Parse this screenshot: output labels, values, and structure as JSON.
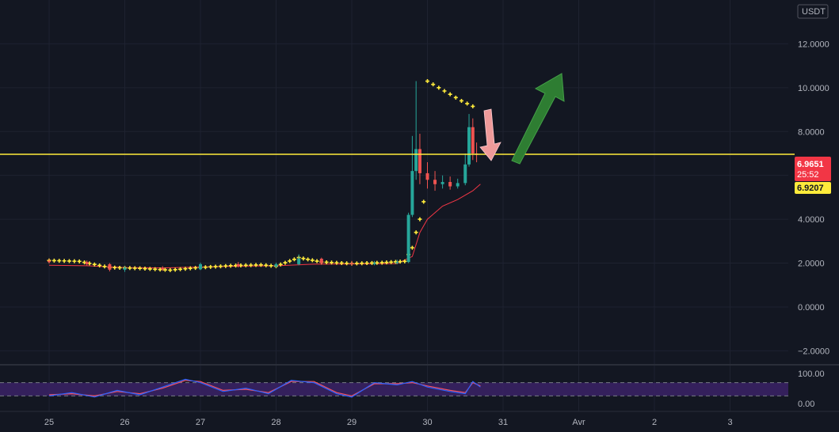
{
  "chart_data": {
    "type": "candlestick",
    "currency": "USDT",
    "price_axis": {
      "ticks": [
        "12.0000",
        "10.0000",
        "8.0000",
        "6.0000",
        "4.0000",
        "2.0000",
        "0.0000",
        "−2.0000"
      ],
      "tick_values": [
        12,
        10,
        8,
        6,
        4,
        2,
        0,
        -2
      ],
      "range": [
        -2.6,
        14.0
      ]
    },
    "date_axis": {
      "labels": [
        "25",
        "26",
        "27",
        "28",
        "29",
        "30",
        "31",
        "Avr",
        "2",
        "3"
      ]
    },
    "horizontal_line": {
      "value": 6.9651,
      "color": "#ffeb3b"
    },
    "last_price": {
      "value": "6.9651",
      "countdown": "25:52",
      "color": "#f23645"
    },
    "secondary_price": {
      "value": "6.9207",
      "color": "#ffeb3b"
    },
    "series": [
      {
        "x": 0.0,
        "open": 2.1,
        "close": 2.05,
        "high": 2.18,
        "low": 1.98
      },
      {
        "x": 0.5,
        "open": 2.05,
        "close": 1.95,
        "high": 2.12,
        "low": 1.88
      },
      {
        "x": 0.8,
        "open": 1.95,
        "close": 1.7,
        "high": 2.0,
        "low": 1.62
      },
      {
        "x": 1.0,
        "open": 1.7,
        "close": 1.78,
        "high": 1.85,
        "low": 1.6
      },
      {
        "x": 1.5,
        "open": 1.78,
        "close": 1.72,
        "high": 1.86,
        "low": 1.65
      },
      {
        "x": 2.0,
        "open": 1.72,
        "close": 1.95,
        "high": 2.02,
        "low": 1.68
      },
      {
        "x": 2.5,
        "open": 1.95,
        "close": 1.85,
        "high": 2.05,
        "low": 1.8
      },
      {
        "x": 3.0,
        "open": 1.85,
        "close": 1.95,
        "high": 2.02,
        "low": 1.8
      },
      {
        "x": 3.3,
        "open": 1.95,
        "close": 2.2,
        "high": 2.4,
        "low": 1.9
      },
      {
        "x": 3.6,
        "open": 2.2,
        "close": 2.0,
        "high": 2.25,
        "low": 1.92
      },
      {
        "x": 4.0,
        "open": 2.0,
        "close": 1.95,
        "high": 2.1,
        "low": 1.88
      },
      {
        "x": 4.3,
        "open": 1.95,
        "close": 2.0,
        "high": 2.1,
        "low": 1.9
      },
      {
        "x": 4.6,
        "open": 2.0,
        "close": 2.05,
        "high": 2.15,
        "low": 1.95
      },
      {
        "x": 4.75,
        "open": 2.05,
        "close": 4.2,
        "high": 4.3,
        "low": 2.0
      },
      {
        "x": 4.8,
        "open": 4.2,
        "close": 6.2,
        "high": 7.8,
        "low": 4.1
      },
      {
        "x": 4.85,
        "open": 6.2,
        "close": 7.2,
        "high": 10.3,
        "low": 5.8
      },
      {
        "x": 4.9,
        "open": 7.2,
        "close": 6.1,
        "high": 7.9,
        "low": 5.6
      },
      {
        "x": 5.0,
        "open": 6.1,
        "close": 5.8,
        "high": 6.6,
        "low": 5.4
      },
      {
        "x": 5.1,
        "open": 5.8,
        "close": 5.6,
        "high": 6.2,
        "low": 5.3
      },
      {
        "x": 5.2,
        "open": 5.6,
        "close": 5.7,
        "high": 6.0,
        "low": 5.4
      },
      {
        "x": 5.3,
        "open": 5.7,
        "close": 5.5,
        "high": 5.95,
        "low": 5.35
      },
      {
        "x": 5.4,
        "open": 5.5,
        "close": 5.65,
        "high": 5.85,
        "low": 5.4
      },
      {
        "x": 5.5,
        "open": 5.65,
        "close": 6.5,
        "high": 7.0,
        "low": 5.55
      },
      {
        "x": 5.55,
        "open": 6.5,
        "close": 8.2,
        "high": 8.8,
        "low": 6.4
      },
      {
        "x": 5.6,
        "open": 8.2,
        "close": 7.0,
        "high": 8.6,
        "low": 6.7
      },
      {
        "x": 5.65,
        "open": 7.0,
        "close": 6.97,
        "high": 7.5,
        "low": 6.6
      }
    ],
    "ma_line": [
      {
        "x": 0.0,
        "y": 1.9
      },
      {
        "x": 0.5,
        "y": 1.88
      },
      {
        "x": 1.0,
        "y": 1.8
      },
      {
        "x": 1.5,
        "y": 1.78
      },
      {
        "x": 2.0,
        "y": 1.82
      },
      {
        "x": 2.5,
        "y": 1.86
      },
      {
        "x": 3.0,
        "y": 1.88
      },
      {
        "x": 3.5,
        "y": 1.95
      },
      {
        "x": 4.0,
        "y": 1.96
      },
      {
        "x": 4.6,
        "y": 1.98
      },
      {
        "x": 4.8,
        "y": 2.3
      },
      {
        "x": 4.9,
        "y": 3.4
      },
      {
        "x": 5.0,
        "y": 4.0
      },
      {
        "x": 5.2,
        "y": 4.6
      },
      {
        "x": 5.4,
        "y": 4.9
      },
      {
        "x": 5.6,
        "y": 5.3
      },
      {
        "x": 5.7,
        "y": 5.6
      }
    ],
    "parabolic_sar": [
      {
        "x": 0.0,
        "y": 2.12
      },
      {
        "x": 0.4,
        "y": 2.08
      },
      {
        "x": 0.8,
        "y": 1.8
      },
      {
        "x": 1.2,
        "y": 1.76
      },
      {
        "x": 1.6,
        "y": 1.68
      },
      {
        "x": 2.0,
        "y": 1.8
      },
      {
        "x": 2.4,
        "y": 1.88
      },
      {
        "x": 2.8,
        "y": 1.92
      },
      {
        "x": 3.0,
        "y": 1.86
      },
      {
        "x": 3.3,
        "y": 2.25
      },
      {
        "x": 3.6,
        "y": 2.05
      },
      {
        "x": 4.0,
        "y": 1.98
      },
      {
        "x": 4.4,
        "y": 2.02
      },
      {
        "x": 4.7,
        "y": 2.08
      },
      {
        "x": 4.8,
        "y": 2.7
      },
      {
        "x": 4.85,
        "y": 3.4
      },
      {
        "x": 4.9,
        "y": 4.0
      },
      {
        "x": 4.95,
        "y": 4.8
      },
      {
        "x": 5.0,
        "y": 10.3
      },
      {
        "x": 5.15,
        "y": 10.0
      },
      {
        "x": 5.3,
        "y": 9.7
      },
      {
        "x": 5.45,
        "y": 9.4
      },
      {
        "x": 5.6,
        "y": 9.15
      }
    ],
    "arrows": [
      {
        "color": "#ef9a9a",
        "direction": "down"
      },
      {
        "color": "#2e7d32",
        "direction": "up"
      }
    ],
    "oscillator": {
      "ticks": [
        "100.00",
        "0.00"
      ],
      "upper_band": 80,
      "lower_band": 20,
      "k_line": [
        {
          "x": 0.0,
          "y": 20
        },
        {
          "x": 0.3,
          "y": 35
        },
        {
          "x": 0.6,
          "y": 15
        },
        {
          "x": 0.9,
          "y": 45
        },
        {
          "x": 1.2,
          "y": 25
        },
        {
          "x": 1.5,
          "y": 60
        },
        {
          "x": 1.8,
          "y": 95
        },
        {
          "x": 2.0,
          "y": 80
        },
        {
          "x": 2.3,
          "y": 40
        },
        {
          "x": 2.6,
          "y": 55
        },
        {
          "x": 2.9,
          "y": 30
        },
        {
          "x": 3.2,
          "y": 90
        },
        {
          "x": 3.5,
          "y": 80
        },
        {
          "x": 3.8,
          "y": 30
        },
        {
          "x": 4.0,
          "y": 15
        },
        {
          "x": 4.3,
          "y": 80
        },
        {
          "x": 4.6,
          "y": 70
        },
        {
          "x": 4.8,
          "y": 85
        },
        {
          "x": 5.0,
          "y": 60
        },
        {
          "x": 5.3,
          "y": 40
        },
        {
          "x": 5.5,
          "y": 30
        },
        {
          "x": 5.6,
          "y": 85
        },
        {
          "x": 5.7,
          "y": 60
        }
      ],
      "d_line": [
        {
          "x": 0.0,
          "y": 25
        },
        {
          "x": 0.3,
          "y": 30
        },
        {
          "x": 0.6,
          "y": 20
        },
        {
          "x": 0.9,
          "y": 40
        },
        {
          "x": 1.2,
          "y": 30
        },
        {
          "x": 1.5,
          "y": 55
        },
        {
          "x": 1.8,
          "y": 90
        },
        {
          "x": 2.0,
          "y": 85
        },
        {
          "x": 2.3,
          "y": 45
        },
        {
          "x": 2.6,
          "y": 50
        },
        {
          "x": 2.9,
          "y": 35
        },
        {
          "x": 3.2,
          "y": 85
        },
        {
          "x": 3.5,
          "y": 85
        },
        {
          "x": 3.8,
          "y": 35
        },
        {
          "x": 4.0,
          "y": 20
        },
        {
          "x": 4.3,
          "y": 75
        },
        {
          "x": 4.6,
          "y": 75
        },
        {
          "x": 4.8,
          "y": 80
        },
        {
          "x": 5.0,
          "y": 65
        },
        {
          "x": 5.3,
          "y": 45
        },
        {
          "x": 5.5,
          "y": 35
        },
        {
          "x": 5.6,
          "y": 80
        },
        {
          "x": 5.7,
          "y": 65
        }
      ]
    }
  }
}
